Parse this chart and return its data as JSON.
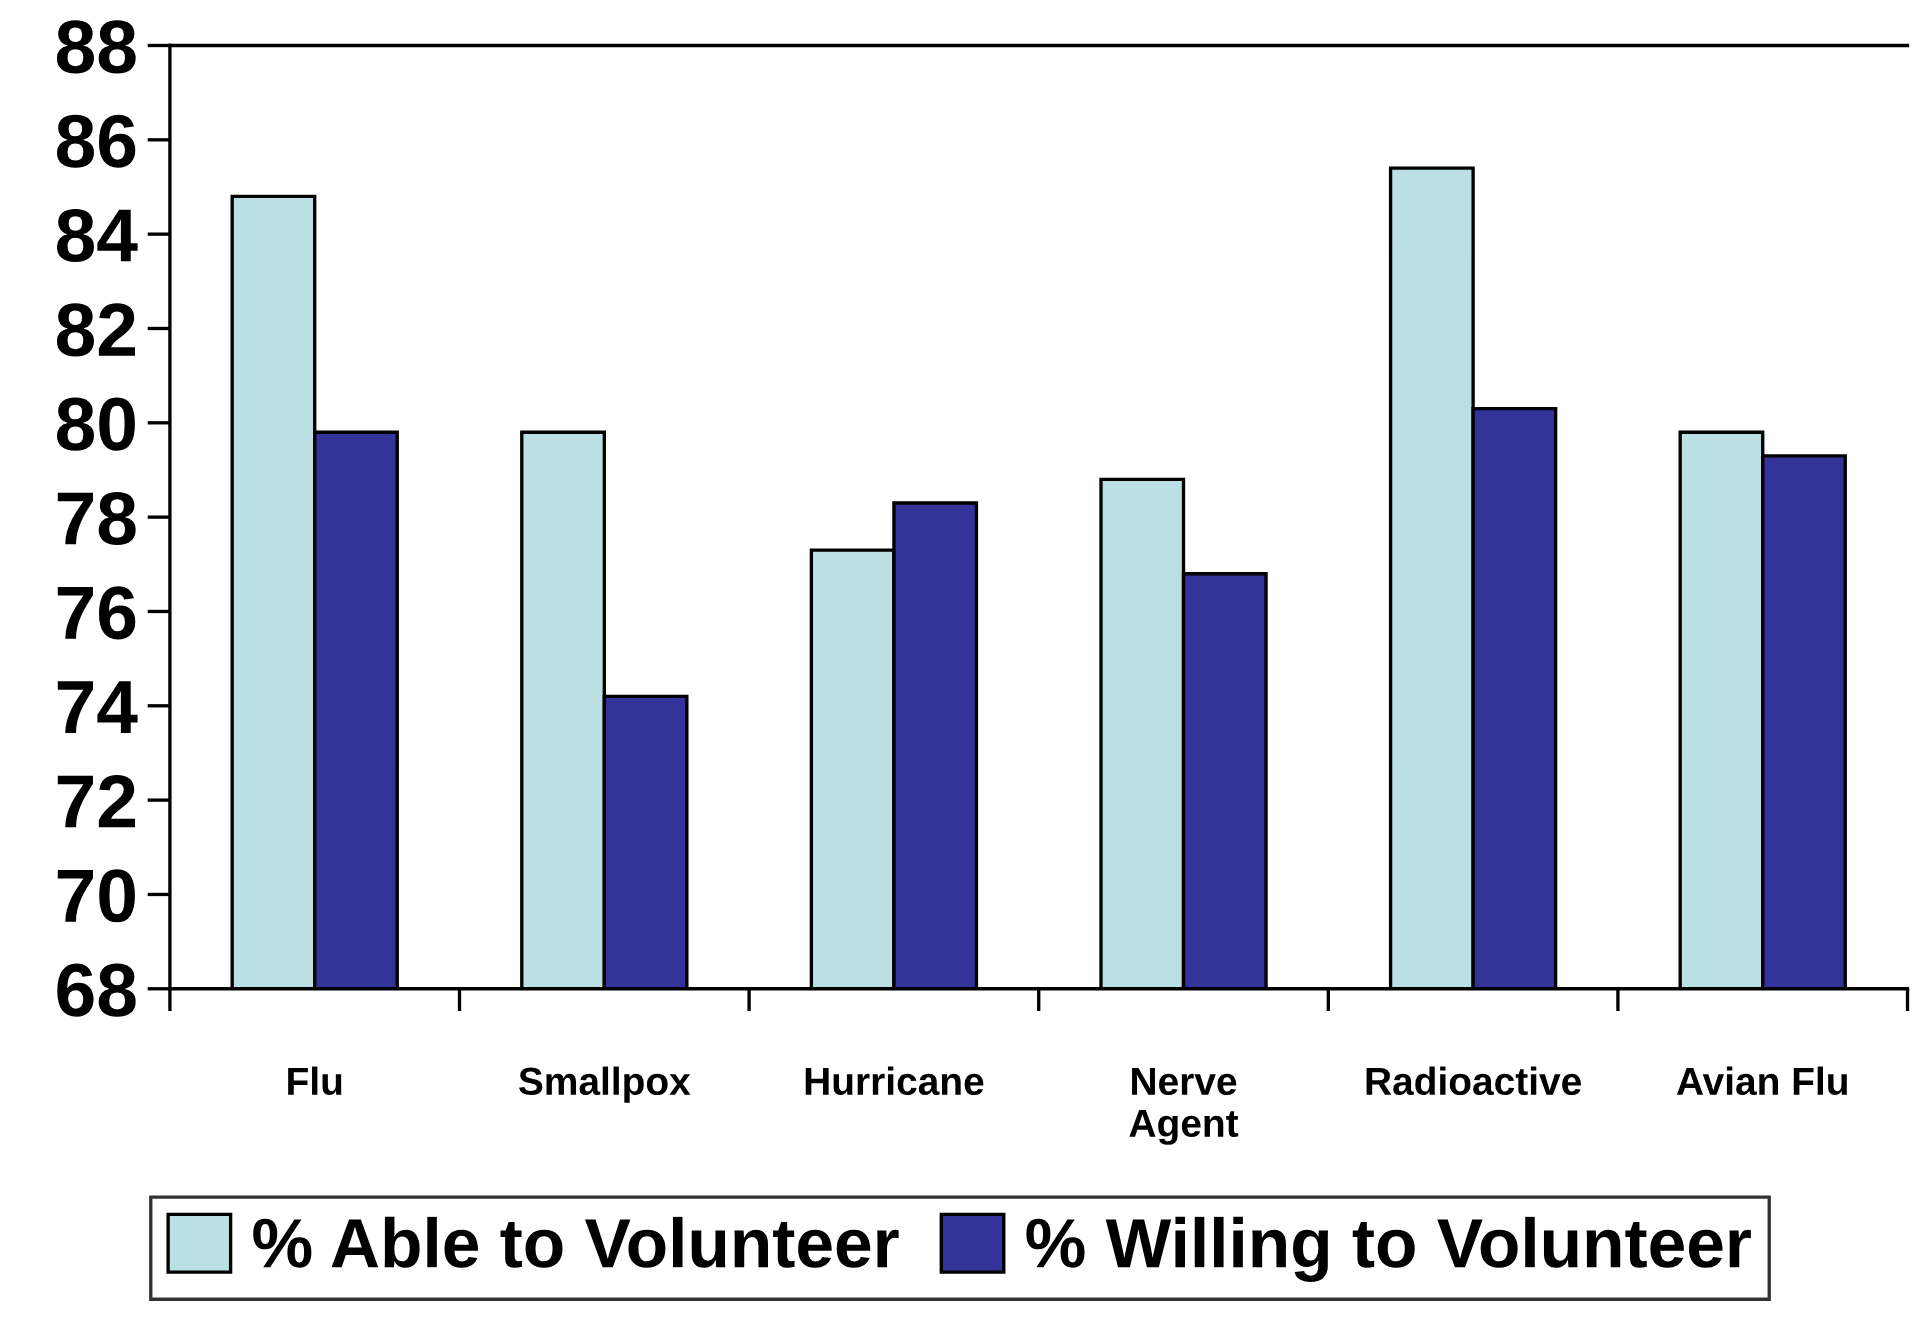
{
  "chart_data": {
    "type": "bar",
    "categories": [
      "Flu",
      "Smallpox",
      "Hurricane",
      "Nerve\nAgent",
      "Radioactive",
      "Avian Flu"
    ],
    "series": [
      {
        "name": "% Able to Volunteer",
        "color": "#bae0e3",
        "values": [
          84.8,
          79.8,
          77.3,
          78.8,
          85.4,
          79.8
        ]
      },
      {
        "name": "% Willing to Volunteer",
        "color": "#333399",
        "values": [
          79.8,
          74.2,
          78.3,
          76.8,
          80.3,
          79.3
        ]
      }
    ],
    "ylim": [
      68,
      88
    ],
    "yticks": [
      68,
      70,
      72,
      74,
      76,
      78,
      80,
      82,
      84,
      86,
      88
    ],
    "grid": false,
    "legend": "bottom"
  }
}
